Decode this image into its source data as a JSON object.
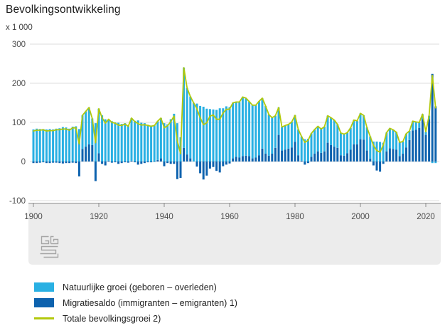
{
  "title": "Bevolkingsontwikkeling",
  "unit_label": "x 1 000",
  "legend": [
    {
      "label": "Natuurlijke groei (geboren – overleden)",
      "swatch": "rect",
      "color": "#29b0e3"
    },
    {
      "label": "Migratiesaldo (immigranten – emigranten) 1)",
      "swatch": "rect",
      "color": "#0d62ae"
    },
    {
      "label": "Totale bevolkingsgroei 2)",
      "swatch": "line",
      "color": "#b3c90c"
    }
  ],
  "logo_name": "cbs-logo",
  "chart_data": {
    "type": "bar",
    "subtype": "stacked-bars-with-total-line",
    "title": "Bevolkingsontwikkeling",
    "ylabel": "x 1 000",
    "xlabel": "",
    "ylim": [
      -100,
      300
    ],
    "yticks": [
      300,
      200,
      100,
      0,
      -100
    ],
    "xticks": [
      1900,
      1920,
      1940,
      1960,
      1980,
      2000,
      2020
    ],
    "grid": true,
    "legend_position": "bottom",
    "x": [
      1900,
      1901,
      1902,
      1903,
      1904,
      1905,
      1906,
      1907,
      1908,
      1909,
      1910,
      1911,
      1912,
      1913,
      1914,
      1915,
      1916,
      1917,
      1918,
      1919,
      1920,
      1921,
      1922,
      1923,
      1924,
      1925,
      1926,
      1927,
      1928,
      1929,
      1930,
      1931,
      1932,
      1933,
      1934,
      1935,
      1936,
      1937,
      1938,
      1939,
      1940,
      1941,
      1942,
      1943,
      1944,
      1945,
      1946,
      1947,
      1948,
      1949,
      1950,
      1951,
      1952,
      1953,
      1954,
      1955,
      1956,
      1957,
      1958,
      1959,
      1960,
      1961,
      1962,
      1963,
      1964,
      1965,
      1966,
      1967,
      1968,
      1969,
      1970,
      1971,
      1972,
      1973,
      1974,
      1975,
      1976,
      1977,
      1978,
      1979,
      1980,
      1981,
      1982,
      1983,
      1984,
      1985,
      1986,
      1987,
      1988,
      1989,
      1990,
      1991,
      1992,
      1993,
      1994,
      1995,
      1996,
      1997,
      1998,
      1999,
      2000,
      2001,
      2002,
      2003,
      2004,
      2005,
      2006,
      2007,
      2008,
      2009,
      2010,
      2011,
      2012,
      2013,
      2014,
      2015,
      2016,
      2017,
      2018,
      2019,
      2020,
      2021,
      2022,
      2023
    ],
    "series": [
      {
        "name": "Natuurlijke groei (geboren – overleden)",
        "kind": "bar",
        "color": "#29b0e3",
        "values": [
          82,
          84,
          83,
          83,
          82,
          83,
          82,
          84,
          85,
          88,
          87,
          84,
          89,
          90,
          83,
          86,
          90,
          94,
          68,
          98,
          114,
          118,
          108,
          106,
          103,
          100,
          99,
          96,
          98,
          93,
          109,
          104,
          105,
          99,
          98,
          94,
          92,
          93,
          99,
          103,
          98,
          95,
          108,
          122,
          98,
          62,
          205,
          170,
          158,
          150,
          148,
          142,
          140,
          135,
          134,
          133,
          132,
          136,
          136,
          141,
          139,
          142,
          140,
          142,
          151,
          147,
          139,
          136,
          134,
          138,
          129,
          122,
          105,
          92,
          82,
          70,
          60,
          62,
          62,
          65,
          68,
          66,
          62,
          57,
          58,
          60,
          62,
          64,
          61,
          63,
          69,
          70,
          68,
          60,
          57,
          55,
          53,
          56,
          62,
          60,
          66,
          62,
          59,
          57,
          51,
          51,
          50,
          48,
          48,
          51,
          49,
          45,
          35,
          31,
          35,
          23,
          24,
          20,
          14,
          13,
          8,
          9,
          -4,
          -4
        ]
      },
      {
        "name": "Migratiesaldo (immigranten – emigranten) 1)",
        "kind": "bar",
        "color": "#0d62ae",
        "values": [
          -4,
          -4,
          -3,
          -2,
          -4,
          -4,
          -3,
          -3,
          -4,
          -5,
          -4,
          -4,
          -3,
          -4,
          -38,
          32,
          38,
          44,
          42,
          -50,
          21,
          -6,
          -10,
          2,
          -3,
          -2,
          -6,
          -4,
          -2,
          -3,
          2,
          -2,
          -8,
          -6,
          -4,
          -2,
          -2,
          -1,
          4,
          8,
          -12,
          -4,
          -6,
          -6,
          -45,
          -42,
          35,
          18,
          8,
          0,
          -13,
          -30,
          -46,
          -36,
          -18,
          -14,
          -24,
          -28,
          -12,
          -8,
          -5,
          8,
          12,
          10,
          14,
          15,
          14,
          8,
          10,
          16,
          33,
          20,
          15,
          20,
          35,
          68,
          28,
          30,
          33,
          36,
          50,
          16,
          2,
          -8,
          -4,
          12,
          20,
          26,
          22,
          26,
          48,
          42,
          38,
          35,
          16,
          15,
          21,
          30,
          44,
          44,
          57,
          56,
          28,
          7,
          -10,
          -23,
          -26,
          -6,
          26,
          34,
          32,
          30,
          14,
          20,
          36,
          55,
          79,
          81,
          86,
          108,
          68,
          108,
          224,
          141
        ]
      },
      {
        "name": "Totale bevolkingsgroei 2)",
        "kind": "line",
        "color": "#b3c90c",
        "values": [
          78,
          80,
          80,
          81,
          78,
          79,
          79,
          81,
          81,
          83,
          83,
          80,
          86,
          86,
          45,
          118,
          128,
          138,
          110,
          48,
          135,
          112,
          98,
          108,
          100,
          98,
          93,
          92,
          96,
          90,
          111,
          102,
          97,
          93,
          94,
          92,
          90,
          92,
          103,
          111,
          86,
          91,
          102,
          116,
          53,
          20,
          240,
          188,
          166,
          150,
          135,
          112,
          94,
          99,
          116,
          119,
          108,
          108,
          124,
          133,
          134,
          150,
          152,
          152,
          165,
          162,
          153,
          144,
          144,
          154,
          162,
          142,
          120,
          112,
          117,
          138,
          88,
          92,
          95,
          101,
          118,
          82,
          64,
          49,
          54,
          72,
          82,
          90,
          83,
          89,
          117,
          112,
          106,
          95,
          73,
          70,
          74,
          86,
          106,
          104,
          123,
          118,
          87,
          64,
          41,
          28,
          24,
          42,
          74,
          85,
          81,
          75,
          49,
          51,
          71,
          78,
          103,
          101,
          100,
          121,
          76,
          117,
          220,
          137
        ]
      }
    ],
    "colors": {
      "grid": "#dcdcdc",
      "axis": "#8c8c8c",
      "axis_band": "#ececec",
      "tick_text": "#4d4d4d",
      "logo": "#a5a5a5"
    }
  }
}
